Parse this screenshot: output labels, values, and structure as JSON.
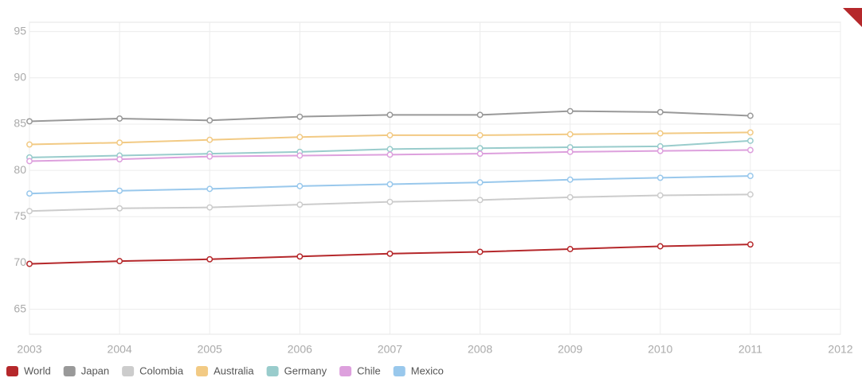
{
  "chart_data": {
    "type": "line",
    "x": [
      2003,
      2004,
      2005,
      2006,
      2007,
      2008,
      2009,
      2010,
      2011
    ],
    "series": [
      {
        "name": "World",
        "color": "#b5282b",
        "values": [
          69.9,
          70.2,
          70.4,
          70.7,
          71.0,
          71.2,
          71.5,
          71.8,
          72.0
        ]
      },
      {
        "name": "Japan",
        "color": "#999999",
        "values": [
          85.3,
          85.6,
          85.4,
          85.8,
          86.0,
          86.0,
          86.4,
          86.3,
          85.9
        ]
      },
      {
        "name": "Colombia",
        "color": "#cccccc",
        "values": [
          75.6,
          75.9,
          76.0,
          76.3,
          76.6,
          76.8,
          77.1,
          77.3,
          77.4
        ]
      },
      {
        "name": "Australia",
        "color": "#f2ca84",
        "values": [
          82.8,
          83.0,
          83.3,
          83.6,
          83.8,
          83.8,
          83.9,
          84.0,
          84.1
        ]
      },
      {
        "name": "Germany",
        "color": "#99cccc",
        "values": [
          81.4,
          81.6,
          81.8,
          82.0,
          82.3,
          82.4,
          82.5,
          82.6,
          83.2
        ]
      },
      {
        "name": "Chile",
        "color": "#dda0dd",
        "values": [
          81.0,
          81.2,
          81.5,
          81.6,
          81.7,
          81.8,
          82.0,
          82.1,
          82.2
        ]
      },
      {
        "name": "Mexico",
        "color": "#99c8ec",
        "values": [
          77.5,
          77.8,
          78.0,
          78.3,
          78.5,
          78.7,
          79.0,
          79.2,
          79.4
        ]
      }
    ],
    "xlim": [
      2003,
      2012
    ],
    "xticks": [
      2003,
      2004,
      2005,
      2006,
      2007,
      2008,
      2009,
      2010,
      2011,
      2012
    ],
    "ylim": [
      62.3,
      96
    ],
    "yticks": [
      65,
      70,
      75,
      80,
      85,
      90,
      95
    ],
    "grid": true,
    "legend": "bottom-left"
  }
}
